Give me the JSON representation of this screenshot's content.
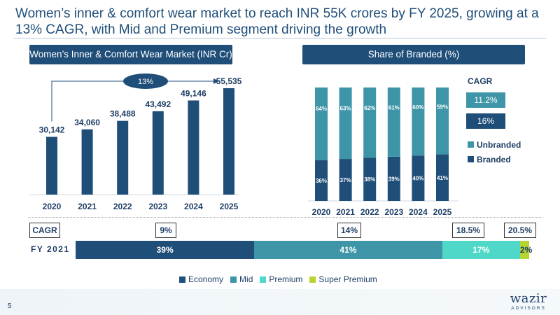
{
  "page": {
    "title": "Women’s inner & comfort wear market to reach INR 55K crores by FY 2025, growing at a 13% CAGR, with Mid and Premium segment driving the growth",
    "page_number": "5",
    "logo_word": "wazir",
    "logo_sub": "ADVISORS"
  },
  "chart_data": [
    {
      "type": "bar",
      "title": "Women’s Inner & Comfort Wear Market (INR Cr)",
      "categories": [
        "2020",
        "2021",
        "2022",
        "2023",
        "2024",
        "2025"
      ],
      "values": [
        30142,
        34060,
        38488,
        43492,
        49146,
        55535
      ],
      "value_labels": [
        "30,142",
        "34,060",
        "38,488",
        "43,492",
        "49,146",
        "55,535"
      ],
      "annotation": "13%",
      "color": "#1f4e79"
    },
    {
      "type": "bar",
      "stacked": true,
      "percent": true,
      "title": "Share of Branded (%)",
      "categories": [
        "2020",
        "2021",
        "2022",
        "2023",
        "2024",
        "2025"
      ],
      "series": [
        {
          "name": "Branded",
          "values": [
            36,
            37,
            38,
            39,
            40,
            41
          ],
          "labels": [
            "36%",
            "37%",
            "38%",
            "39%",
            "40%",
            "41%"
          ],
          "color": "#1f4e79"
        },
        {
          "name": "Unbranded",
          "values": [
            64,
            63,
            62,
            61,
            60,
            59
          ],
          "labels": [
            "64%",
            "63%",
            "62%",
            "61%",
            "60%",
            "59%"
          ],
          "color": "#3e95a8"
        }
      ],
      "cagr_title": "CAGR",
      "cagr_values": [
        "11.2%",
        "16%"
      ],
      "legend": [
        "Unbranded",
        "Branded"
      ]
    },
    {
      "type": "bar",
      "stacked": true,
      "orientation": "horizontal",
      "category": "FY 2021",
      "cagr_label": "CAGR",
      "series": [
        {
          "name": "Economy",
          "value": 39,
          "label": "39%",
          "cagr": "9%",
          "color": "#1f4e79"
        },
        {
          "name": "Mid",
          "value": 41,
          "label": "41%",
          "cagr": "14%",
          "color": "#3e95a8"
        },
        {
          "name": "Premium",
          "value": 17,
          "label": "17%",
          "cagr": "18.5%",
          "color": "#4fd8c8"
        },
        {
          "name": "Super Premium",
          "value": 2,
          "label": "2%",
          "cagr": "20.5%",
          "color": "#b7d531"
        }
      ]
    }
  ]
}
